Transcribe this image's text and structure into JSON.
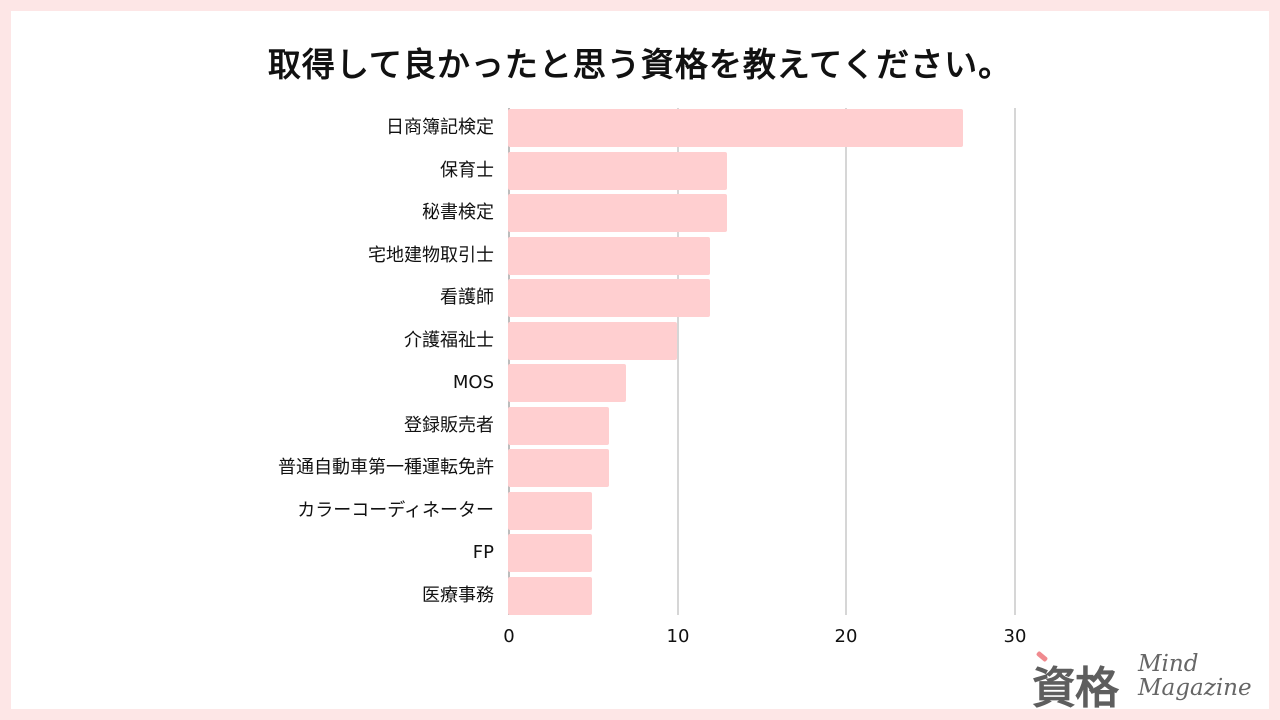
{
  "title": "取得して良かったと思う資格を教えてください。",
  "colors": {
    "frame": "#fde6e6",
    "bar": "#ffcfd0",
    "grid": "#d6d6d6",
    "text": "#111111"
  },
  "logo": {
    "kanji": "資格",
    "line1": "Mind",
    "line2": "Magazine"
  },
  "axis": {
    "ticks": [
      "0",
      "10",
      "20",
      "30"
    ]
  },
  "chart_data": {
    "type": "bar",
    "orientation": "horizontal",
    "title": "取得して良かったと思う資格を教えてください。",
    "xlabel": "",
    "ylabel": "",
    "categories": [
      "日商簿記検定",
      "保育士",
      "秘書検定",
      "宅地建物取引士",
      "看護師",
      "介護福祉士",
      "MOS",
      "登録販売者",
      "普通自動車第一種運転免許",
      "カラーコーディネーター",
      "FP",
      "医療事務"
    ],
    "values": [
      27,
      13,
      13,
      12,
      12,
      10,
      7,
      6,
      6,
      5,
      5,
      5
    ],
    "xlim": [
      0,
      30
    ],
    "xticks": [
      0,
      10,
      20,
      30
    ],
    "grid": true,
    "legend": null
  }
}
